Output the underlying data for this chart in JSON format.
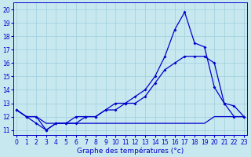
{
  "xlabel": "Graphe des températures (°c)",
  "bg_color": "#c8e8f0",
  "grid_color": "#9ecfdc",
  "line_color": "#0000cc",
  "x_ticks": [
    0,
    1,
    2,
    3,
    4,
    5,
    6,
    7,
    8,
    9,
    10,
    11,
    12,
    13,
    14,
    15,
    16,
    17,
    18,
    19,
    20,
    21,
    22,
    23
  ],
  "y_ticks": [
    11,
    12,
    13,
    14,
    15,
    16,
    17,
    18,
    19,
    20
  ],
  "xlim": [
    -0.3,
    23.3
  ],
  "ylim": [
    10.6,
    20.5
  ],
  "line1_x": [
    0,
    1,
    2,
    3,
    4,
    5,
    6,
    7,
    8,
    9,
    10,
    11,
    12,
    13,
    14,
    15,
    16,
    17,
    18,
    19,
    20,
    21,
    22,
    23
  ],
  "line1_y": [
    12.5,
    12.0,
    12.0,
    11.5,
    11.5,
    11.5,
    11.5,
    11.5,
    11.5,
    11.5,
    11.5,
    11.5,
    11.5,
    11.5,
    11.5,
    11.5,
    11.5,
    11.5,
    11.5,
    11.5,
    12.0,
    12.0,
    12.0,
    12.0
  ],
  "line2_x": [
    0,
    1,
    2,
    3,
    4,
    5,
    6,
    7,
    8,
    9,
    10,
    11,
    12,
    13,
    14,
    15,
    16,
    17,
    18,
    19,
    20,
    21,
    22,
    23
  ],
  "line2_y": [
    12.5,
    12.0,
    11.5,
    11.0,
    11.5,
    11.5,
    11.5,
    12.0,
    12.0,
    12.5,
    13.0,
    13.0,
    13.5,
    14.0,
    15.0,
    16.5,
    18.5,
    19.8,
    17.5,
    17.2,
    14.2,
    13.0,
    12.8,
    12.0
  ],
  "line3_x": [
    0,
    1,
    2,
    3,
    4,
    5,
    6,
    7,
    8,
    9,
    10,
    11,
    12,
    13,
    14,
    15,
    16,
    17,
    18,
    19,
    20,
    21,
    22,
    23
  ],
  "line3_y": [
    12.5,
    12.0,
    12.0,
    11.0,
    11.5,
    11.5,
    12.0,
    12.0,
    12.0,
    12.5,
    12.5,
    13.0,
    13.0,
    13.5,
    14.5,
    15.5,
    16.0,
    16.5,
    16.5,
    16.5,
    16.0,
    13.0,
    12.0,
    12.0
  ],
  "tick_fontsize": 5.5,
  "xlabel_fontsize": 6.5,
  "lw": 0.9,
  "markersize": 2.0
}
